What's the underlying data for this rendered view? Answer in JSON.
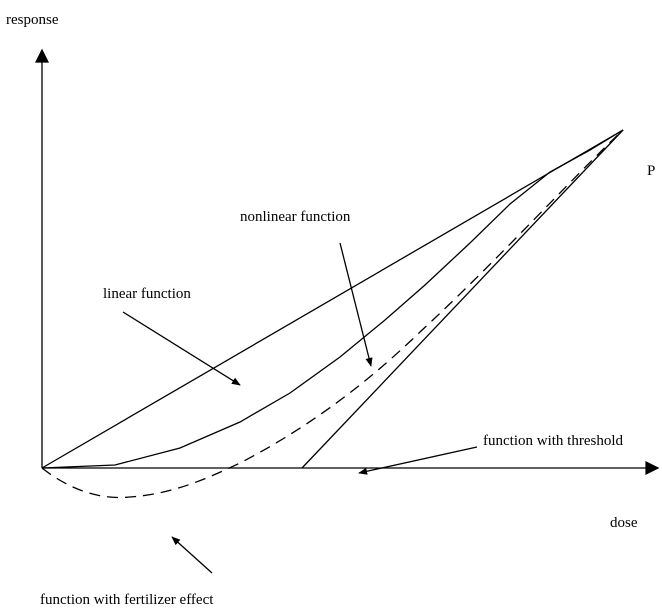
{
  "axes": {
    "y_label": "response",
    "x_label": "dose"
  },
  "point_label": "P",
  "curves": [
    {
      "label": "linear function"
    },
    {
      "label": "nonlinear function"
    },
    {
      "label": "function with threshold"
    },
    {
      "label": "function with fertilizer effect"
    }
  ]
}
